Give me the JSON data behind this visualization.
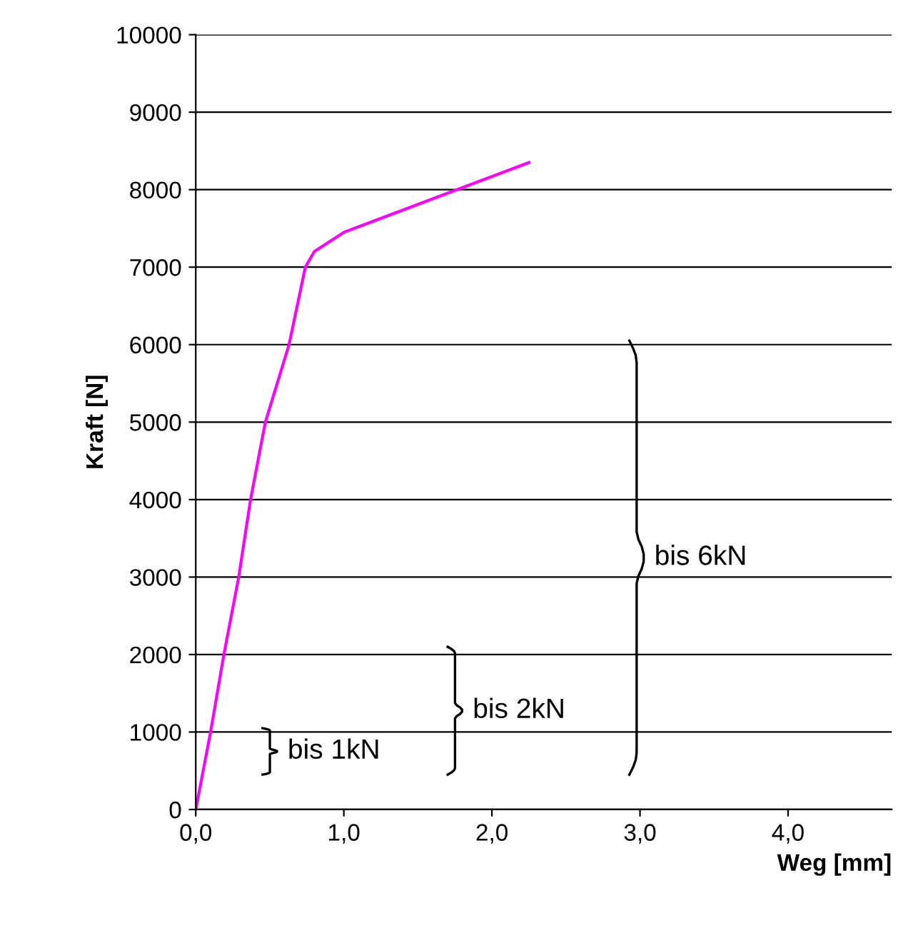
{
  "chart_data": {
    "type": "line",
    "xlabel": "Weg [mm]",
    "ylabel": "Kraft [N]",
    "x": [
      0,
      0.1,
      0.19,
      0.29,
      0.37,
      0.47,
      0.63,
      0.74,
      0.8,
      1.0,
      2.25
    ],
    "series": [
      {
        "color": "#ff00ff",
        "values": [
          0,
          1000,
          2000,
          3000,
          4000,
          5000,
          6000,
          7000,
          7200,
          7450,
          8350
        ]
      }
    ],
    "xlim": [
      0,
      4.7
    ],
    "ylim": [
      0,
      10000
    ],
    "xticks": [
      {
        "value": 0,
        "label": "0,0"
      },
      {
        "value": 1,
        "label": "1,0"
      },
      {
        "value": 2,
        "label": "2,0"
      },
      {
        "value": 3,
        "label": "3,0"
      },
      {
        "value": 4,
        "label": "4,0"
      }
    ],
    "yticks": [
      0,
      1000,
      2000,
      3000,
      4000,
      5000,
      6000,
      7000,
      8000,
      9000,
      10000
    ],
    "grid": "y",
    "legend": false,
    "marker": "none",
    "line_style": "solid",
    "annotations": [
      "bis 1kN",
      "bis 2kN",
      "bis 6kN"
    ]
  }
}
